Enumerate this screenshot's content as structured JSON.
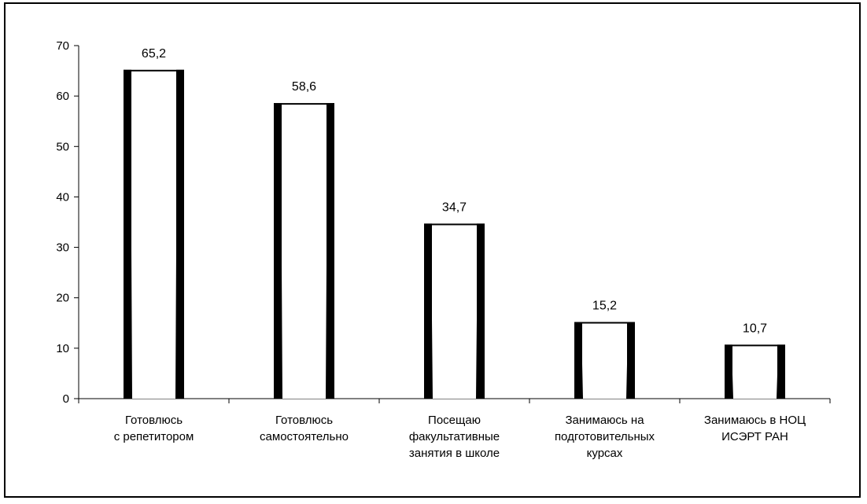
{
  "chart_data": {
    "type": "bar",
    "categories": [
      [
        "Готовлюсь",
        "с репетитором"
      ],
      [
        "Готовлюсь",
        "самостоятельно"
      ],
      [
        "Посещаю",
        "факультативные",
        "занятия в школе"
      ],
      [
        "Занимаюсь на",
        "подготовительных",
        "курсах"
      ],
      [
        "Занимаюсь в НОЦ",
        "ИСЭРТ РАН"
      ]
    ],
    "values": [
      65.2,
      58.6,
      34.7,
      15.2,
      10.7
    ],
    "data_labels": [
      "65,2",
      "58,6",
      "34,7",
      "15,2",
      "10,7"
    ],
    "ylim": [
      0,
      70
    ],
    "yticks": [
      0,
      10,
      20,
      30,
      40,
      50,
      60,
      70
    ],
    "grid": false,
    "legend": "none",
    "title": "",
    "xlabel": "",
    "ylabel": "",
    "colors": {
      "bar_fill": "#ffffff",
      "bar_border": "#000000",
      "axis": "#000000"
    }
  }
}
